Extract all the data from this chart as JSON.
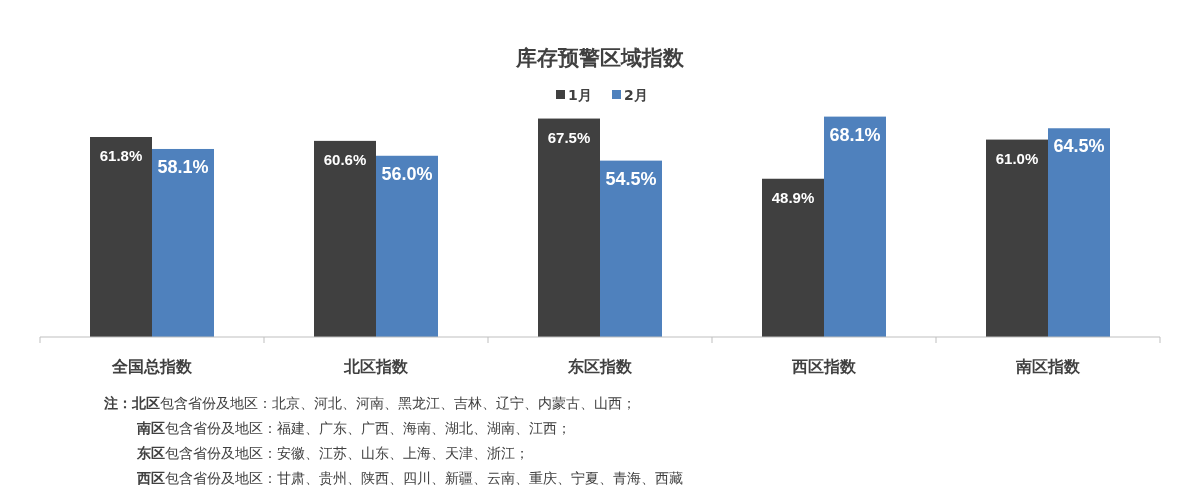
{
  "chart_data": {
    "type": "bar",
    "title": "库存预警区域指数",
    "categories": [
      "全国总指数",
      "北区指数",
      "东区指数",
      "西区指数",
      "南区指数"
    ],
    "series": [
      {
        "name": "1月",
        "color": "#404040",
        "values": [
          61.8,
          60.6,
          67.5,
          48.9,
          61.0
        ],
        "value_labels": [
          "61.8%",
          "60.6%",
          "67.5%",
          "48.9%",
          "61.0%"
        ]
      },
      {
        "name": "2月",
        "color": "#4f81bd",
        "values": [
          58.1,
          56.0,
          54.5,
          68.1,
          64.5
        ],
        "value_labels": [
          "58.1%",
          "56.0%",
          "54.5%",
          "68.1%",
          "64.5%"
        ]
      }
    ],
    "legend": "top",
    "annotations": [
      "**注：北区**包含省份及地区：北京、河北、河南、黑龙江、吉林、辽宁、内蒙古、山西；",
      "**南区**包含省份及地区：福建、广东、广西、海南、湖北、湖南、江西；",
      "**东区**包含省份及地区：安徽、江苏、山东、上海、天津、浙江；",
      "**西区**包含省份及地区：甘肃、贵州、陕西、四川、新疆、云南、重庆、宁夏、青海、西藏"
    ]
  }
}
